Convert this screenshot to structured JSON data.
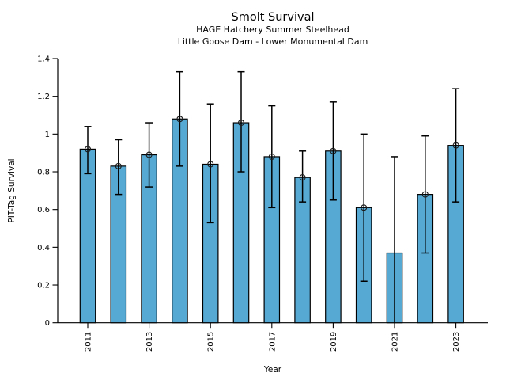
{
  "chart_data": {
    "type": "bar",
    "title": "Smolt Survival",
    "subtitles": [
      "HAGE Hatchery Summer Steelhead",
      "Little Goose Dam - Lower Monumental Dam"
    ],
    "xlabel": "Year",
    "ylabel": "PIT-Tag Survival",
    "ylim": [
      0,
      1.4
    ],
    "ytick_values": [
      0,
      0.2,
      0.4,
      0.6,
      0.8,
      1.0,
      1.2,
      1.4
    ],
    "ytick_labels": [
      "0",
      "0.2",
      "0.4",
      "0.6",
      "0.8",
      "1",
      "1.2",
      "1.4"
    ],
    "xtick_labeled_years": [
      2011,
      2013,
      2015,
      2017,
      2019,
      2021,
      2023
    ],
    "categories": [
      2011,
      2012,
      2013,
      2014,
      2015,
      2016,
      2017,
      2018,
      2019,
      2020,
      2021,
      2022,
      2023
    ],
    "values": [
      0.92,
      0.83,
      0.89,
      1.08,
      0.84,
      1.06,
      0.88,
      0.77,
      0.91,
      0.61,
      0.37,
      0.68,
      0.94
    ],
    "error_low": [
      0.79,
      0.68,
      0.72,
      0.83,
      0.53,
      0.8,
      0.61,
      0.64,
      0.65,
      0.22,
      0.0,
      0.37,
      0.64
    ],
    "error_high": [
      1.04,
      0.97,
      1.06,
      1.33,
      1.16,
      1.33,
      1.15,
      0.91,
      1.17,
      1.0,
      0.88,
      0.99,
      1.24
    ],
    "top_marker": [
      true,
      true,
      true,
      true,
      true,
      true,
      true,
      true,
      true,
      true,
      false,
      true,
      true
    ],
    "grid": false,
    "legend": "none",
    "bar_color": "#56a9d3",
    "bar_edge_color": "#000000",
    "error_color": "#000000",
    "marker_style": "open-circle"
  }
}
